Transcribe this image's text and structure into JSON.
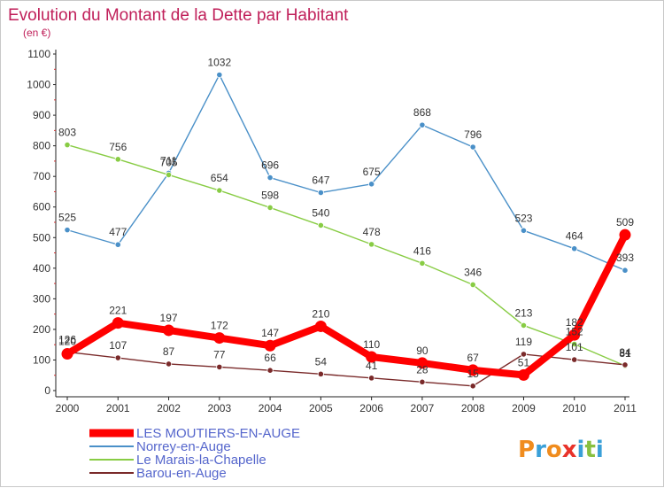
{
  "chart_data": {
    "type": "line",
    "title": "Evolution du Montant de la Dette par Habitant",
    "subtitle": "(en €)",
    "xlabel": "",
    "ylabel": "",
    "ylim": [
      0,
      1100
    ],
    "yticks": [
      0,
      100,
      200,
      300,
      400,
      500,
      600,
      700,
      800,
      900,
      1000,
      1100
    ],
    "categories": [
      "2000",
      "2001",
      "2002",
      "2003",
      "2004",
      "2005",
      "2006",
      "2007",
      "2008",
      "2009",
      "2010",
      "2011"
    ],
    "grid": false,
    "legend_position": "bottom-left",
    "series": [
      {
        "name": "LES MOUTIERS-EN-AUGE",
        "color": "#ff0000",
        "emphasis": true,
        "values": [
          120,
          221,
          197,
          172,
          147,
          210,
          110,
          90,
          67,
          51,
          182,
          509
        ]
      },
      {
        "name": "Norrey-en-Auge",
        "color": "#4a90c8",
        "values": [
          525,
          477,
          711,
          1032,
          696,
          647,
          675,
          868,
          796,
          523,
          464,
          393
        ]
      },
      {
        "name": "Le Marais-la-Chapelle",
        "color": "#88cc44",
        "values": [
          803,
          756,
          705,
          654,
          598,
          540,
          478,
          416,
          346,
          213,
          152,
          81
        ]
      },
      {
        "name": "Barou-en-Auge",
        "color": "#7a2a2a",
        "values": [
          126,
          107,
          87,
          77,
          66,
          54,
          41,
          28,
          15,
          119,
          101,
          84
        ]
      }
    ]
  },
  "logo_text": "Proxiti",
  "logo_colors": [
    "#f08c1e",
    "#3aa0d8",
    "#f08c1e",
    "#e8322a",
    "#3aa0d8",
    "#88c040",
    "#3aa0d8"
  ]
}
